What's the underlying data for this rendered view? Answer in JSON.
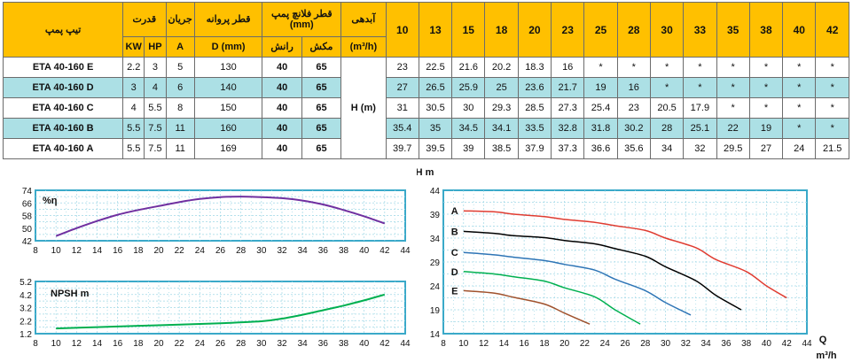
{
  "table": {
    "headers": {
      "pump_type": "تیپ پمپ",
      "power": "قدرت",
      "current": "جریان",
      "impeller": "قطر پروانه",
      "flange": "قطر فلانچ پمپ (mm)",
      "flow": "آبدهی",
      "kw": "KW",
      "hp": "HP",
      "amp": "A",
      "dmm": "D (mm)",
      "discharge": "رانش",
      "suction": "مکش",
      "flow_unit": "(m³/h)",
      "head_unit": "H (m)"
    },
    "flows": [
      "10",
      "13",
      "15",
      "18",
      "20",
      "23",
      "25",
      "28",
      "30",
      "33",
      "35",
      "38",
      "40",
      "42"
    ],
    "rows": [
      {
        "model": "ETA 40-160 E",
        "kw": "2.2",
        "hp": "3",
        "a": "5",
        "d": "130",
        "discharge": "40",
        "suction": "65",
        "heads": [
          "23",
          "22.5",
          "21.6",
          "20.2",
          "18.3",
          "16",
          "*",
          "*",
          "*",
          "*",
          "*",
          "*",
          "*",
          "*"
        ]
      },
      {
        "model": "ETA 40-160 D",
        "kw": "3",
        "hp": "4",
        "a": "6",
        "d": "140",
        "discharge": "40",
        "suction": "65",
        "heads": [
          "27",
          "26.5",
          "25.9",
          "25",
          "23.6",
          "21.7",
          "19",
          "16",
          "*",
          "*",
          "*",
          "*",
          "*",
          "*"
        ]
      },
      {
        "model": "ETA 40-160 C",
        "kw": "4",
        "hp": "5.5",
        "a": "8",
        "d": "150",
        "discharge": "40",
        "suction": "65",
        "heads": [
          "31",
          "30.5",
          "30",
          "29.3",
          "28.5",
          "27.3",
          "25.4",
          "23",
          "20.5",
          "17.9",
          "*",
          "*",
          "*",
          "*"
        ]
      },
      {
        "model": "ETA 40-160 B",
        "kw": "5.5",
        "hp": "7.5",
        "a": "11",
        "d": "160",
        "discharge": "40",
        "suction": "65",
        "heads": [
          "35.4",
          "35",
          "34.5",
          "34.1",
          "33.5",
          "32.8",
          "31.8",
          "30.2",
          "28",
          "25.1",
          "22",
          "19",
          "*",
          "*"
        ]
      },
      {
        "model": "ETA 40-160 A",
        "kw": "5.5",
        "hp": "7.5",
        "a": "11",
        "d": "169",
        "discharge": "40",
        "suction": "65",
        "heads": [
          "39.7",
          "39.5",
          "39",
          "38.5",
          "37.9",
          "37.3",
          "36.6",
          "35.6",
          "34",
          "32",
          "29.5",
          "27",
          "24",
          "21.5"
        ]
      }
    ]
  },
  "chart_data": [
    {
      "type": "line",
      "ylabel": "%η",
      "x_ticks": [
        "8",
        "10",
        "12",
        "14",
        "16",
        "18",
        "20",
        "22",
        "24",
        "26",
        "28",
        "30",
        "32",
        "34",
        "36",
        "38",
        "40",
        "42",
        "44"
      ],
      "y_ticks": [
        "42",
        "50",
        "58",
        "66",
        "74"
      ],
      "xlim": [
        8,
        44
      ],
      "ylim": [
        42,
        74
      ],
      "color": "#7030a0",
      "series": [
        {
          "x": [
            10,
            12,
            14,
            16,
            18,
            20,
            22,
            24,
            26,
            28,
            30,
            32,
            34,
            36,
            38,
            40,
            42
          ],
          "y": [
            45,
            50,
            54.5,
            58.5,
            61.5,
            64,
            66.5,
            68.5,
            69.7,
            70,
            69.7,
            69,
            67.5,
            65,
            61.5,
            57.5,
            53
          ]
        }
      ]
    },
    {
      "type": "line",
      "ylabel": "NPSH m",
      "x_ticks": [
        "8",
        "10",
        "12",
        "14",
        "16",
        "18",
        "20",
        "22",
        "24",
        "26",
        "28",
        "30",
        "32",
        "34",
        "36",
        "38",
        "40",
        "42",
        "44"
      ],
      "y_ticks": [
        "1.2",
        "2.2",
        "3.2",
        "4.2",
        "5.2"
      ],
      "xlim": [
        8,
        44
      ],
      "ylim": [
        1.2,
        5.2
      ],
      "color": "#00b050",
      "series": [
        {
          "x": [
            10,
            14,
            18,
            22,
            26,
            30,
            32,
            34,
            36,
            38,
            40,
            42
          ],
          "y": [
            1.6,
            1.7,
            1.8,
            1.9,
            2.0,
            2.15,
            2.35,
            2.65,
            3.0,
            3.35,
            3.75,
            4.2
          ]
        }
      ]
    },
    {
      "type": "line",
      "ylabel": "H m",
      "xlabel_top": "Q",
      "xlabel_bottom": "m³/h",
      "x_ticks": [
        "8",
        "10",
        "12",
        "14",
        "16",
        "18",
        "20",
        "22",
        "24",
        "26",
        "28",
        "30",
        "32",
        "34",
        "36",
        "38",
        "40",
        "42",
        "44"
      ],
      "y_ticks": [
        "14",
        "19",
        "24",
        "29",
        "34",
        "39",
        "44"
      ],
      "xlim": [
        8,
        44
      ],
      "ylim": [
        14,
        44
      ],
      "series": [
        {
          "name": "A",
          "color": "#e03c31",
          "x": [
            10,
            13,
            15,
            18,
            20,
            23,
            25,
            28,
            30,
            33,
            35,
            38,
            40,
            42
          ],
          "y": [
            39.7,
            39.5,
            39,
            38.5,
            37.9,
            37.3,
            36.6,
            35.6,
            34,
            32,
            29.5,
            27,
            24,
            21.5
          ]
        },
        {
          "name": "B",
          "color": "#000000",
          "x": [
            10,
            13,
            15,
            18,
            20,
            23,
            25,
            28,
            30,
            33,
            35,
            37.5
          ],
          "y": [
            35.4,
            35,
            34.5,
            34.1,
            33.5,
            32.8,
            31.8,
            30.2,
            28,
            25.1,
            22,
            19
          ]
        },
        {
          "name": "C",
          "color": "#2e75b6",
          "x": [
            10,
            13,
            15,
            18,
            20,
            23,
            25,
            28,
            30,
            32.5
          ],
          "y": [
            31,
            30.5,
            30,
            29.3,
            28.5,
            27.3,
            25.4,
            23,
            20.5,
            17.9
          ]
        },
        {
          "name": "D",
          "color": "#00b050",
          "x": [
            10,
            13,
            15,
            18,
            20,
            23,
            25,
            27.5
          ],
          "y": [
            27,
            26.5,
            25.9,
            25,
            23.6,
            21.7,
            19,
            16
          ]
        },
        {
          "name": "E",
          "color": "#a0522d",
          "x": [
            10,
            13,
            15,
            18,
            20,
            22.5
          ],
          "y": [
            23,
            22.5,
            21.6,
            20.2,
            18.3,
            16
          ]
        }
      ]
    }
  ]
}
